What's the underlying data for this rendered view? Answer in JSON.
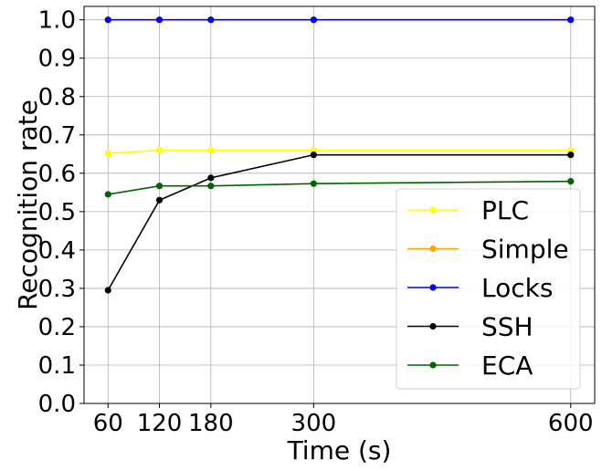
{
  "chart_data": {
    "type": "line",
    "xlabel": "Time (s)",
    "ylabel": "Recognition rate",
    "x": [
      60,
      120,
      180,
      300,
      600
    ],
    "xticks": [
      "60",
      "120",
      "180",
      "300",
      "600"
    ],
    "yticks": [
      "0.0",
      "0.1",
      "0.2",
      "0.3",
      "0.4",
      "0.5",
      "0.6",
      "0.7",
      "0.8",
      "0.9",
      "1.0"
    ],
    "xlim": [
      32,
      628
    ],
    "ylim": [
      0.0,
      1.035
    ],
    "grid": true,
    "legend_position": "lower-right",
    "series": [
      {
        "name": "PLC",
        "color": "#ffff00",
        "values": [
          0.652,
          0.66,
          0.66,
          0.66,
          0.66
        ]
      },
      {
        "name": "Simple",
        "color": "#ffa500",
        "values": [
          1.0,
          1.0,
          1.0,
          1.0,
          1.0
        ]
      },
      {
        "name": "Locks",
        "color": "#0000ff",
        "values": [
          1.0,
          1.0,
          1.0,
          1.0,
          1.0
        ]
      },
      {
        "name": "SSH",
        "color": "#000000",
        "values": [
          0.295,
          0.53,
          0.588,
          0.648,
          0.648
        ]
      },
      {
        "name": "ECA",
        "color": "#006400",
        "values": [
          0.545,
          0.567,
          0.567,
          0.573,
          0.579
        ]
      }
    ]
  }
}
